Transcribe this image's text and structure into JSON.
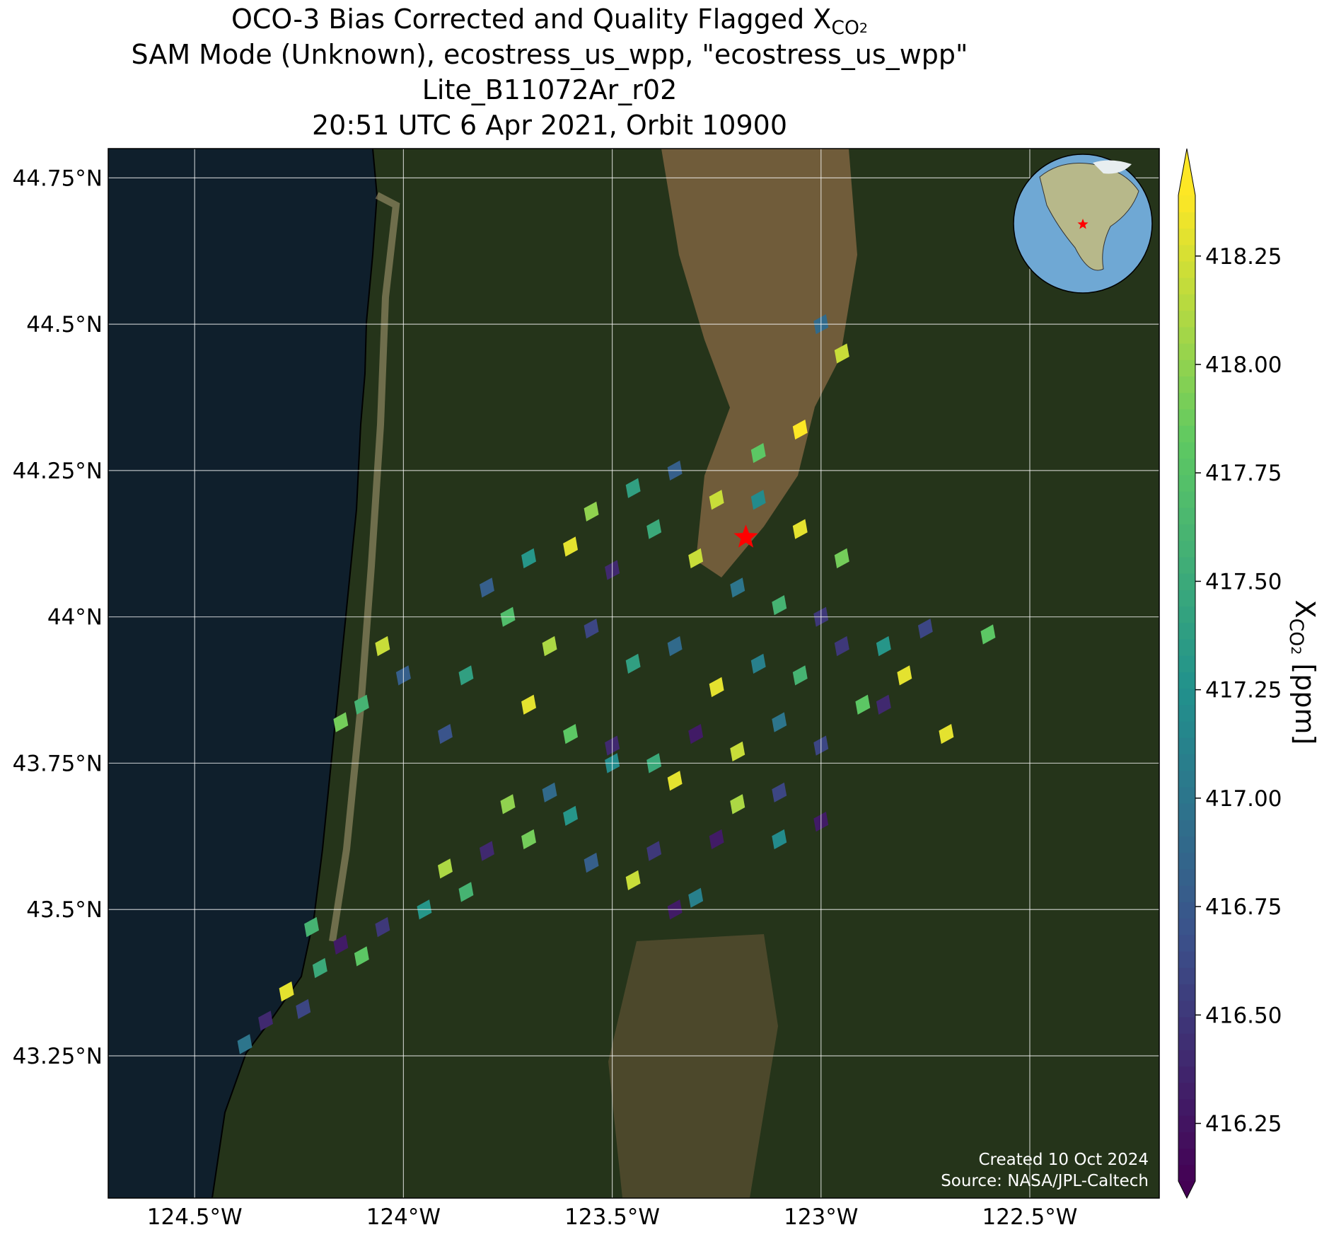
{
  "chart_data": {
    "type": "map",
    "title": [
      {
        "text": "OCO-3 Bias Corrected and Quality Flagged X",
        "sub": "CO",
        "subsub": "2"
      },
      {
        "text": "SAM Mode (Unknown), ecostress_us_wpp, \"ecostress_us_wpp\""
      },
      {
        "text": "Lite_B11072Ar_r02"
      },
      {
        "text": "20:51 UTC 6 Apr 2021, Orbit 10900"
      }
    ],
    "xlim": [
      -124.707,
      -122.19
    ],
    "ylim": [
      43.007,
      44.8
    ],
    "xticks": [
      {
        "value": -124.5,
        "label": "124.5°W"
      },
      {
        "value": -124,
        "label": "124°W"
      },
      {
        "value": -123.5,
        "label": "123.5°W"
      },
      {
        "value": -123,
        "label": "123°W"
      },
      {
        "value": -122.5,
        "label": "122.5°W"
      }
    ],
    "yticks": [
      {
        "value": 43.25,
        "label": "43.25°N"
      },
      {
        "value": 43.5,
        "label": "43.5°N"
      },
      {
        "value": 43.75,
        "label": "43.75°N"
      },
      {
        "value": 44,
        "label": "44°N"
      },
      {
        "value": 44.25,
        "label": "44.25°N"
      },
      {
        "value": 44.5,
        "label": "44.5°N"
      },
      {
        "value": 44.75,
        "label": "44.75°N"
      }
    ],
    "grid": true,
    "colorbar": {
      "label": {
        "text": "X",
        "sub": "CO",
        "subsub": "2",
        "suffix": " [ppm]"
      },
      "clim": [
        416.117,
        418.39
      ],
      "extend": "both",
      "ticks": [
        416.25,
        {
          "value": 416.5,
          "label": "416.50"
        },
        416.75,
        {
          "value": 417,
          "label": "417.00"
        },
        417.25,
        {
          "value": 417.5,
          "label": "417.50"
        },
        417.75,
        {
          "value": 418,
          "label": "418.00"
        },
        418.25
      ]
    },
    "colormap": [
      "#440154",
      "#3b528b",
      "#21918c",
      "#5ec962",
      "#fde725"
    ],
    "target": {
      "lon": -123.18,
      "lat": 44.136,
      "color": "#ff0000"
    },
    "lon": [
      -124.38,
      -124.33,
      -124.28,
      -124.24,
      -124.2,
      -124.15,
      -124.1,
      -124.05,
      -124.22,
      -123.95,
      -123.9,
      -123.8,
      -123.85,
      -123.7,
      -123.6,
      -123.55,
      -123.45,
      -123.4,
      -123.3,
      -123.25,
      -123.2,
      -123.1,
      -123.35,
      -123.5,
      -123.65,
      -123.75,
      -123.9,
      -123.85,
      -123.7,
      -123.6,
      -123.5,
      -123.4,
      -123.3,
      -123.2,
      -123.1,
      -123.0,
      -122.9,
      -122.8,
      -122.85,
      -122.95,
      -123.05,
      -123.15,
      -123.25,
      -123.35,
      -123.45,
      -123.55,
      -123.65,
      -123.75,
      -123.8,
      -123.7,
      -123.6,
      -123.5,
      -123.4,
      -123.3,
      -123.2,
      -123.1,
      -123.0,
      -122.95,
      -123.05,
      -123.15,
      -123.25,
      -123.35,
      -123.45,
      -123.55,
      -124.05,
      -124.1,
      -124.0,
      -124.15,
      -123.0,
      -122.95,
      -123.05,
      -123.15,
      -122.6,
      -122.7,
      -122.75,
      -122.85,
      -123.0,
      -123.1,
      -123.2,
      -123.35
    ],
    "lat": [
      43.27,
      43.31,
      43.36,
      43.33,
      43.4,
      43.44,
      43.42,
      43.47,
      43.47,
      43.5,
      43.57,
      43.6,
      43.53,
      43.62,
      43.66,
      43.58,
      43.55,
      43.6,
      43.52,
      43.62,
      43.68,
      43.7,
      43.72,
      43.75,
      43.7,
      43.68,
      43.8,
      43.9,
      43.85,
      43.8,
      43.78,
      43.75,
      43.8,
      43.77,
      43.82,
      43.78,
      43.85,
      43.9,
      43.95,
      43.95,
      43.9,
      43.92,
      43.88,
      43.95,
      43.92,
      43.98,
      43.95,
      44.0,
      44.05,
      44.1,
      44.12,
      44.08,
      44.15,
      44.1,
      44.05,
      44.02,
      44.0,
      44.1,
      44.15,
      44.2,
      44.2,
      44.25,
      44.22,
      44.18,
      43.95,
      43.85,
      43.9,
      43.82,
      44.5,
      44.45,
      44.32,
      44.28,
      43.97,
      43.8,
      43.98,
      43.85,
      43.65,
      43.62,
      43.68,
      43.5
    ],
    "values": [
      417.0,
      416.4,
      418.3,
      416.6,
      417.5,
      416.3,
      417.8,
      416.5,
      417.6,
      417.3,
      418.1,
      416.4,
      417.6,
      417.9,
      417.3,
      416.8,
      418.2,
      416.5,
      417.1,
      416.3,
      417.7,
      416.6,
      418.3,
      417.2,
      416.9,
      418.0,
      416.7,
      417.4,
      418.3,
      417.8,
      416.4,
      417.5,
      416.3,
      418.2,
      417.0,
      416.6,
      417.8,
      418.3,
      417.3,
      416.5,
      417.6,
      417.1,
      418.3,
      416.9,
      417.4,
      416.6,
      418.1,
      417.7,
      416.8,
      417.3,
      418.3,
      416.4,
      417.5,
      418.2,
      417.0,
      417.6,
      416.5,
      417.9,
      418.3,
      417.2,
      418.2,
      416.8,
      417.4,
      418.0,
      418.2,
      417.6,
      416.8,
      417.9,
      416.9,
      418.2,
      418.4,
      417.8,
      417.8,
      418.3,
      416.6,
      416.4,
      416.3,
      417.2,
      418.1,
      416.3
    ],
    "annotations": [
      "Created 10 Oct 2024",
      "Source: NASA/JPL-Caltech"
    ]
  }
}
